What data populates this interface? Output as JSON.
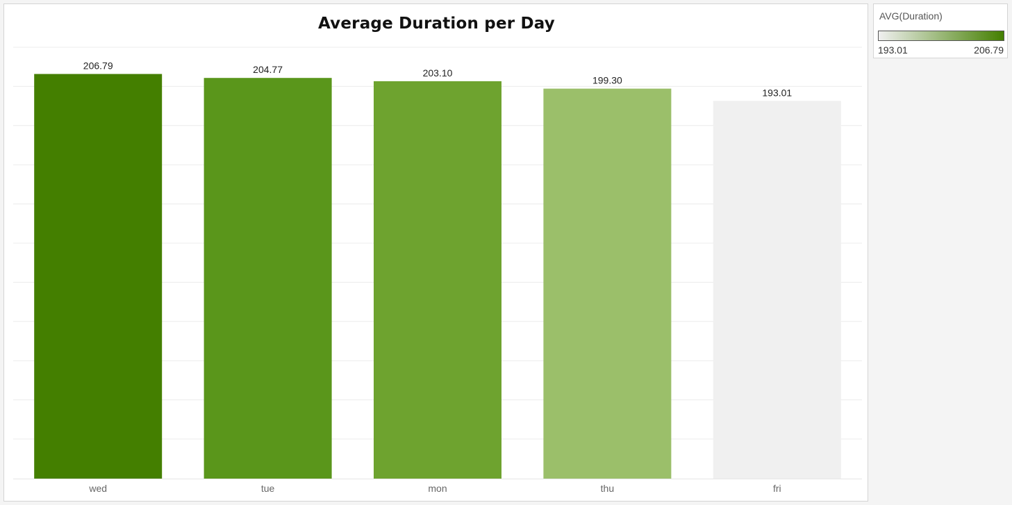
{
  "chart_data": {
    "type": "bar",
    "title": "Average Duration per Day",
    "xlabel": "",
    "ylabel": "",
    "categories": [
      "wed",
      "tue",
      "mon",
      "thu",
      "fri"
    ],
    "values": [
      206.79,
      204.77,
      203.1,
      199.3,
      193.01
    ],
    "value_labels": [
      "206.79",
      "204.77",
      "203.10",
      "199.30",
      "193.01"
    ],
    "ylim": [
      0,
      220
    ],
    "grid": true,
    "color_encoding": {
      "measure": "AVG(Duration)",
      "min_color": "#f0f0f0",
      "max_color": "#447f00"
    },
    "bar_colors": [
      "#447f00",
      "#5a961b",
      "#6ea32f",
      "#9bbf6a",
      "#f0f0f0"
    ]
  },
  "legend": {
    "title": "AVG(Duration)",
    "min_label": "193.01",
    "max_label": "206.79"
  }
}
